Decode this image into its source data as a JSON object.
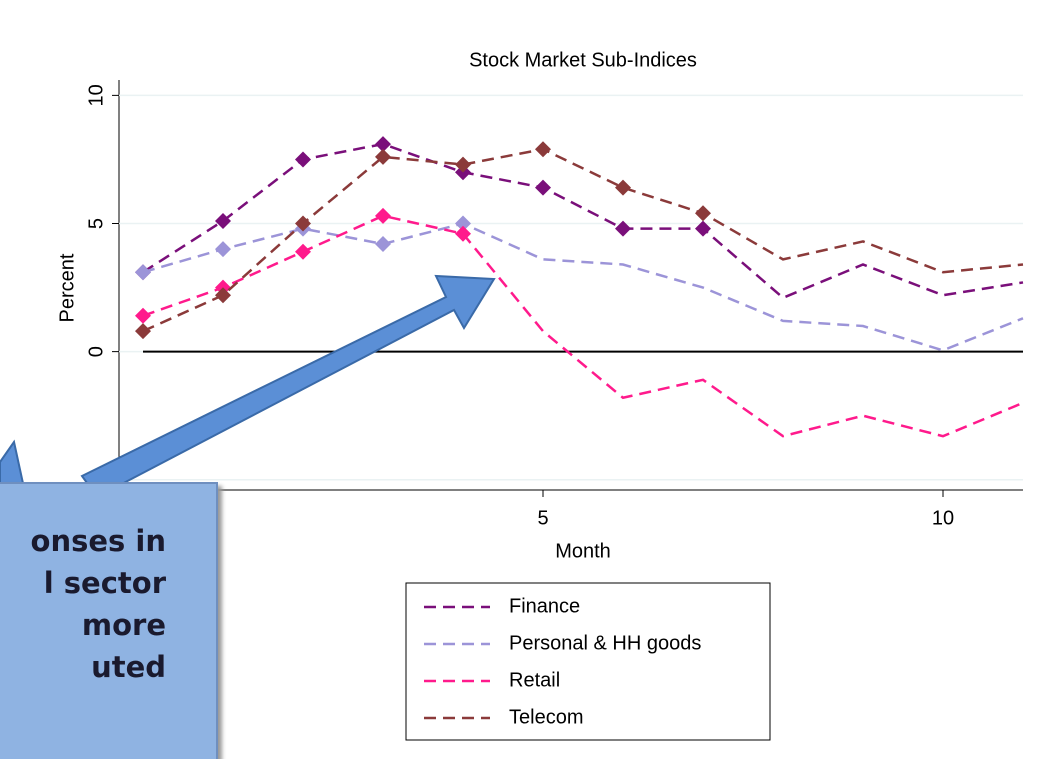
{
  "chart_data": {
    "type": "line",
    "title": "Stock Market Sub-Indices",
    "x_label": "Month",
    "y_label": "Percent",
    "x": [
      0,
      1,
      2,
      3,
      4,
      5,
      6,
      7,
      8,
      9,
      10,
      11
    ],
    "series": [
      {
        "name": "Finance",
        "color": "#7a0f7a",
        "values": [
          3.1,
          5.1,
          7.5,
          8.1,
          7.0,
          6.4,
          4.8,
          4.8,
          2.1,
          3.4,
          2.2,
          2.7
        ]
      },
      {
        "name": "Personal & HH goods",
        "color": "#9c94d8",
        "values": [
          3.1,
          4.0,
          4.8,
          4.2,
          5.0,
          3.6,
          3.4,
          2.5,
          1.2,
          1.0,
          0.05,
          1.3
        ]
      },
      {
        "name": "Retail",
        "color": "#ff1a8c",
        "values": [
          1.4,
          2.5,
          3.9,
          5.3,
          4.6,
          0.8,
          -1.8,
          -1.1,
          -3.3,
          -2.5,
          -3.3,
          -2.0
        ]
      },
      {
        "name": "Telecom",
        "color": "#8b3a3a",
        "values": [
          0.8,
          2.2,
          5.0,
          7.6,
          7.3,
          7.9,
          6.4,
          5.4,
          3.6,
          4.3,
          3.1,
          3.4
        ]
      }
    ],
    "xlim": [
      -0.3,
      11
    ],
    "ylim": [
      -5.4,
      10.6
    ],
    "xticks": [
      0,
      5,
      10
    ],
    "yticks": [
      -5,
      0,
      5,
      10
    ],
    "grid": true
  },
  "callout": {
    "lines": [
      "onses in",
      "l sector",
      "more",
      "uted"
    ]
  }
}
